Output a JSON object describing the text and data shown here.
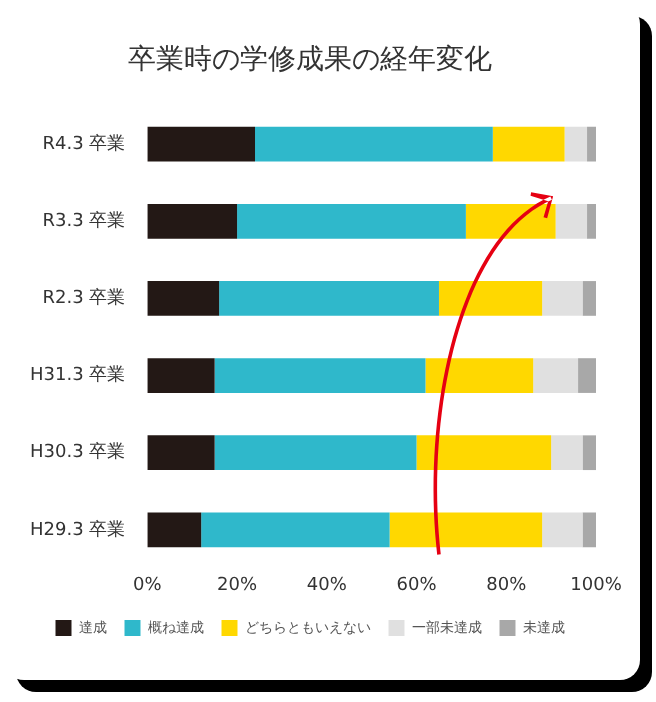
{
  "chart_data": {
    "type": "bar",
    "orientation": "horizontal",
    "stacked": true,
    "title": "卒業時の学修成果の経年変化",
    "categories": [
      "R4.3 卒業",
      "R3.3 卒業",
      "R2.3 卒業",
      "H31.3 卒業",
      "H30.3 卒業",
      "H29.3 卒業"
    ],
    "series": [
      {
        "name": "達成",
        "color": "#231815",
        "values": [
          24,
          20,
          16,
          15,
          15,
          12
        ]
      },
      {
        "name": "概ね達成",
        "color": "#2fb8cb",
        "values": [
          53,
          51,
          49,
          47,
          45,
          42
        ]
      },
      {
        "name": "どちらともいえない",
        "color": "#ffd800",
        "values": [
          16,
          20,
          23,
          24,
          30,
          34
        ]
      },
      {
        "name": "一部未達成",
        "color": "#e0e0e0",
        "values": [
          5,
          7,
          9,
          10,
          7,
          9
        ]
      },
      {
        "name": "未達成",
        "color": "#a8a8a8",
        "values": [
          2,
          2,
          3,
          4,
          3,
          3
        ]
      }
    ],
    "xlim": [
      0,
      100
    ],
    "xticks": [
      {
        "value": 0,
        "label": "0%"
      },
      {
        "value": 20,
        "label": "20%"
      },
      {
        "value": 40,
        "label": "40%"
      },
      {
        "value": 60,
        "label": "60%"
      },
      {
        "value": 80,
        "label": "80%"
      },
      {
        "value": 100,
        "label": "100%"
      }
    ],
    "grid": false,
    "legend": "bottom"
  }
}
